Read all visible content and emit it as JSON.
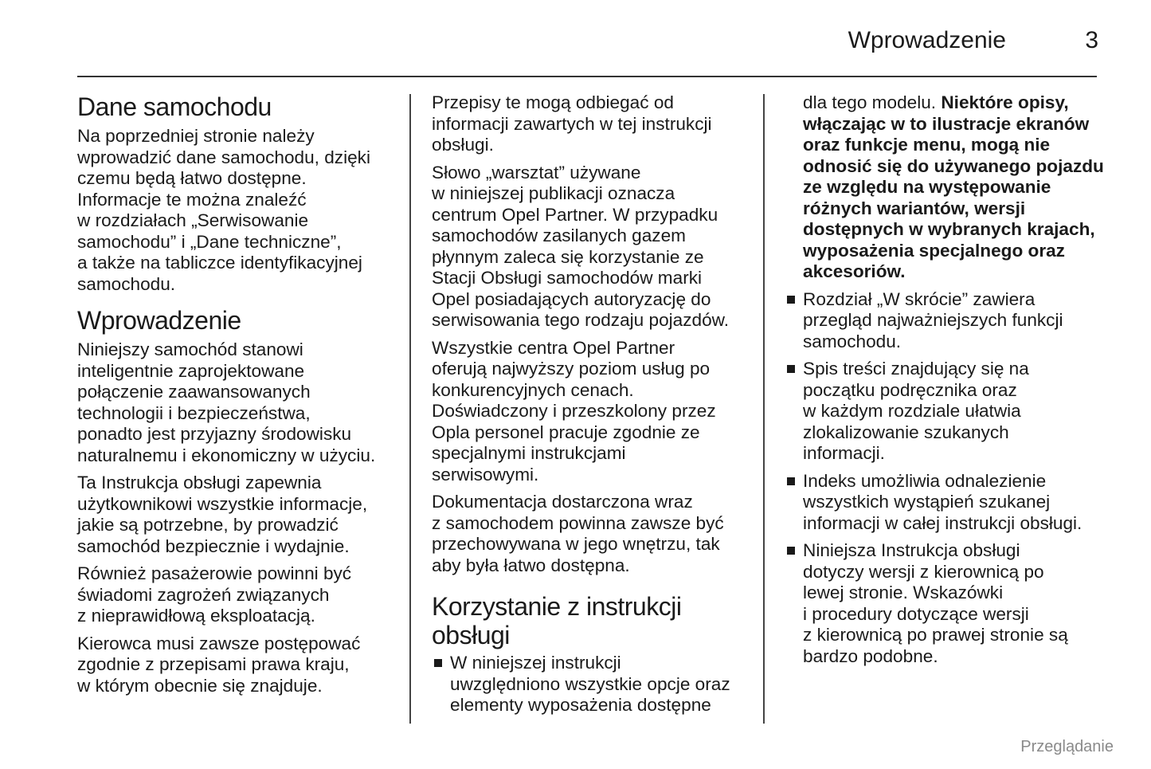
{
  "header": {
    "section_title": "Wprowadzenie",
    "page_number": "3"
  },
  "col1": {
    "h1": "Dane samochodu",
    "p1": "Na poprzedniej stronie należy\nwprowadzić dane samochodu, dzięki\nczemu będą łatwo dostępne.\nInformacje te można znaleźć\nw rozdziałach „Serwisowanie\nsamochodu” i „Dane techniczne”,\na także na tabliczce identyfikacyjnej\nsamochodu.",
    "h2": "Wprowadzenie",
    "p2": "Niniejszy samochód stanowi\ninteligentnie zaprojektowane\npołączenie zaawansowanych\ntechnologii i bezpieczeństwa,\nponadto jest przyjazny środowisku\nnaturalnemu i ekonomiczny w użyciu.",
    "p3": "Ta Instrukcja obsługi zapewnia\nużytkownikowi wszystkie informacje,\njakie są potrzebne, by prowadzić\nsamochód bezpiecznie i wydajnie.",
    "p4": "Również pasażerowie powinni być\nświadomi zagrożeń związanych\nz nieprawidłową eksploatacją.",
    "p5": "Kierowca musi zawsze postępować\nzgodnie z przepisami prawa kraju,\nw którym obecnie się znajduje."
  },
  "col2": {
    "p1": "Przepisy te mogą odbiegać od\ninformacji zawartych w tej instrukcji\nobsługi.",
    "p2": "Słowo „warsztat” używane\nw niniejszej publikacji oznacza\ncentrum Opel Partner. W przypadku\nsamochodów zasilanych gazem\npłynnym zaleca się korzystanie ze\nStacji Obsługi samochodów marki\nOpel posiadających autoryzację do\nserwisowania tego rodzaju pojazdów.",
    "p3": "Wszystkie centra Opel Partner\noferują najwyższy poziom usług po\nkonkurencyjnych cenach.\nDoświadczony i przeszkolony przez\nOpla personel pracuje zgodnie ze\nspecjalnymi instrukcjami\nserwisowymi.",
    "p4": "Dokumentacja dostarczona wraz\nz samochodem powinna zawsze być\nprzechowywana w jego wnętrzu, tak\naby była łatwo dostępna.",
    "h1": "Korzystanie z instrukcji\nobsługi",
    "bullet1": "W niniejszej instrukcji\nuwzględniono wszystkie opcje oraz\nelementy wyposażenia dostępne"
  },
  "col3": {
    "p1_normal": "dla tego modelu. ",
    "p1_bold": "Niektóre opisy,\nwłączając w to ilustracje ekranów\noraz funkcje menu, mogą nie\nodnosić się do używanego pojazdu\nze względu na występowanie\nróżnych wariantów, wersji\ndostępnych w wybranych krajach,\nwyposażenia specjalnego oraz\nakcesoriów.",
    "bullets": [
      "Rozdział „W skrócie” zawiera\nprzegląd najważniejszych funkcji\nsamochodu.",
      "Spis treści znajdujący się na\npoczątku podręcznika oraz\nw każdym rozdziale ułatwia\nzlokalizowanie szukanych\ninformacji.",
      "Indeks umożliwia odnalezienie\nwszystkich wystąpień szukanej\ninformacji w całej instrukcji obsługi.",
      "Niniejsza Instrukcja obsługi\ndotyczy wersji z kierownicą po\nlewej stronie. Wskazówki\ni procedury dotyczące wersji\nz kierownicą po prawej stronie są\nbardzo podobne."
    ]
  },
  "footer": {
    "label": "Przeglądanie"
  }
}
